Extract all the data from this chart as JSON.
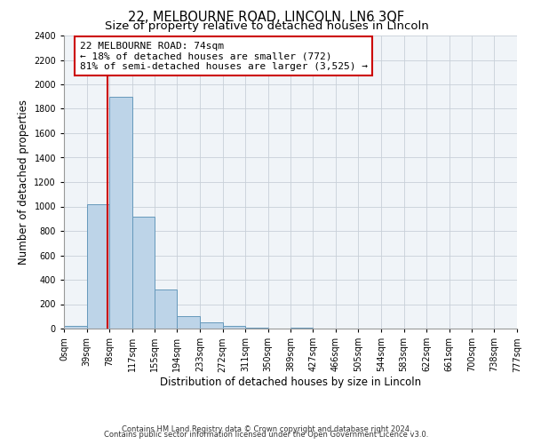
{
  "title": "22, MELBOURNE ROAD, LINCOLN, LN6 3QF",
  "subtitle": "Size of property relative to detached houses in Lincoln",
  "xlabel": "Distribution of detached houses by size in Lincoln",
  "ylabel": "Number of detached properties",
  "bin_edges": [
    0,
    39,
    78,
    117,
    155,
    194,
    233,
    272,
    311,
    350,
    389,
    427,
    466,
    505,
    544,
    583,
    622,
    661,
    700,
    738,
    777
  ],
  "bin_labels": [
    "0sqm",
    "39sqm",
    "78sqm",
    "117sqm",
    "155sqm",
    "194sqm",
    "233sqm",
    "272sqm",
    "311sqm",
    "350sqm",
    "389sqm",
    "427sqm",
    "466sqm",
    "505sqm",
    "544sqm",
    "583sqm",
    "622sqm",
    "661sqm",
    "700sqm",
    "738sqm",
    "777sqm"
  ],
  "bar_heights": [
    20,
    1020,
    1900,
    920,
    320,
    105,
    50,
    20,
    10,
    0,
    5,
    0,
    0,
    0,
    0,
    0,
    0,
    0,
    0,
    0
  ],
  "bar_color": "#bdd4e8",
  "bar_edge_color": "#6699bb",
  "vline_x": 74,
  "vline_color": "#cc0000",
  "annotation_line1": "22 MELBOURNE ROAD: 74sqm",
  "annotation_line2": "← 18% of detached houses are smaller (772)",
  "annotation_line3": "81% of semi-detached houses are larger (3,525) →",
  "box_edge_color": "#cc0000",
  "ylim": [
    0,
    2400
  ],
  "yticks": [
    0,
    200,
    400,
    600,
    800,
    1000,
    1200,
    1400,
    1600,
    1800,
    2000,
    2200,
    2400
  ],
  "footer1": "Contains HM Land Registry data © Crown copyright and database right 2024.",
  "footer2": "Contains public sector information licensed under the Open Government Licence v3.0.",
  "bg_color": "#ffffff",
  "plot_bg_color": "#f0f4f8",
  "grid_color": "#c8d0d8",
  "title_fontsize": 10.5,
  "subtitle_fontsize": 9.5,
  "axis_label_fontsize": 8.5,
  "tick_fontsize": 7,
  "annotation_fontsize": 8,
  "footer_fontsize": 6
}
